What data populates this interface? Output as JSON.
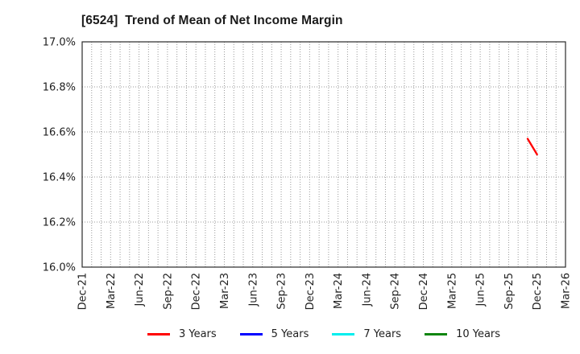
{
  "chart_data": {
    "type": "line",
    "title": "[6524]  Trend of Mean of Net Income Margin",
    "xlabel": "",
    "ylabel": "",
    "ylim": [
      16.0,
      17.0
    ],
    "y_ticks": [
      {
        "label": "17.0%",
        "value": 17.0
      },
      {
        "label": "16.8%",
        "value": 16.8
      },
      {
        "label": "16.6%",
        "value": 16.6
      },
      {
        "label": "16.4%",
        "value": 16.4
      },
      {
        "label": "16.2%",
        "value": 16.2
      },
      {
        "label": "16.0%",
        "value": 16.0
      }
    ],
    "x_axis": {
      "tick_labels": [
        "Dec-21",
        "Mar-22",
        "Jun-22",
        "Sep-22",
        "Dec-22",
        "Mar-23",
        "Jun-23",
        "Sep-23",
        "Dec-23",
        "Mar-24",
        "Jun-24",
        "Sep-24",
        "Dec-24",
        "Mar-25",
        "Jun-25",
        "Sep-25",
        "Dec-25",
        "Mar-26"
      ],
      "tick_every_months": 3,
      "months_span": 51
    },
    "grid": {
      "style": "dotted",
      "vertical": "every month",
      "horizontal": "every 0.2%"
    },
    "legend_position": "bottom-center",
    "series": [
      {
        "name": "3 Years",
        "color": "#ff0000",
        "points": [
          {
            "x_label": "Nov-25",
            "x_month": 47,
            "value": 16.57
          },
          {
            "x_label": "Dec-25",
            "x_month": 48,
            "value": 16.5
          }
        ]
      },
      {
        "name": "5 Years",
        "color": "#0000ff",
        "points": []
      },
      {
        "name": "7 Years",
        "color": "#00eeee",
        "points": []
      },
      {
        "name": "10 Years",
        "color": "#0f850f",
        "points": []
      }
    ],
    "style": {
      "background": "#ffffff",
      "spine_color": "#2a2a2a",
      "grid_color": "#999999",
      "tick_label_color": "#1f1f1f",
      "title_color": "#1a1a1a"
    }
  }
}
